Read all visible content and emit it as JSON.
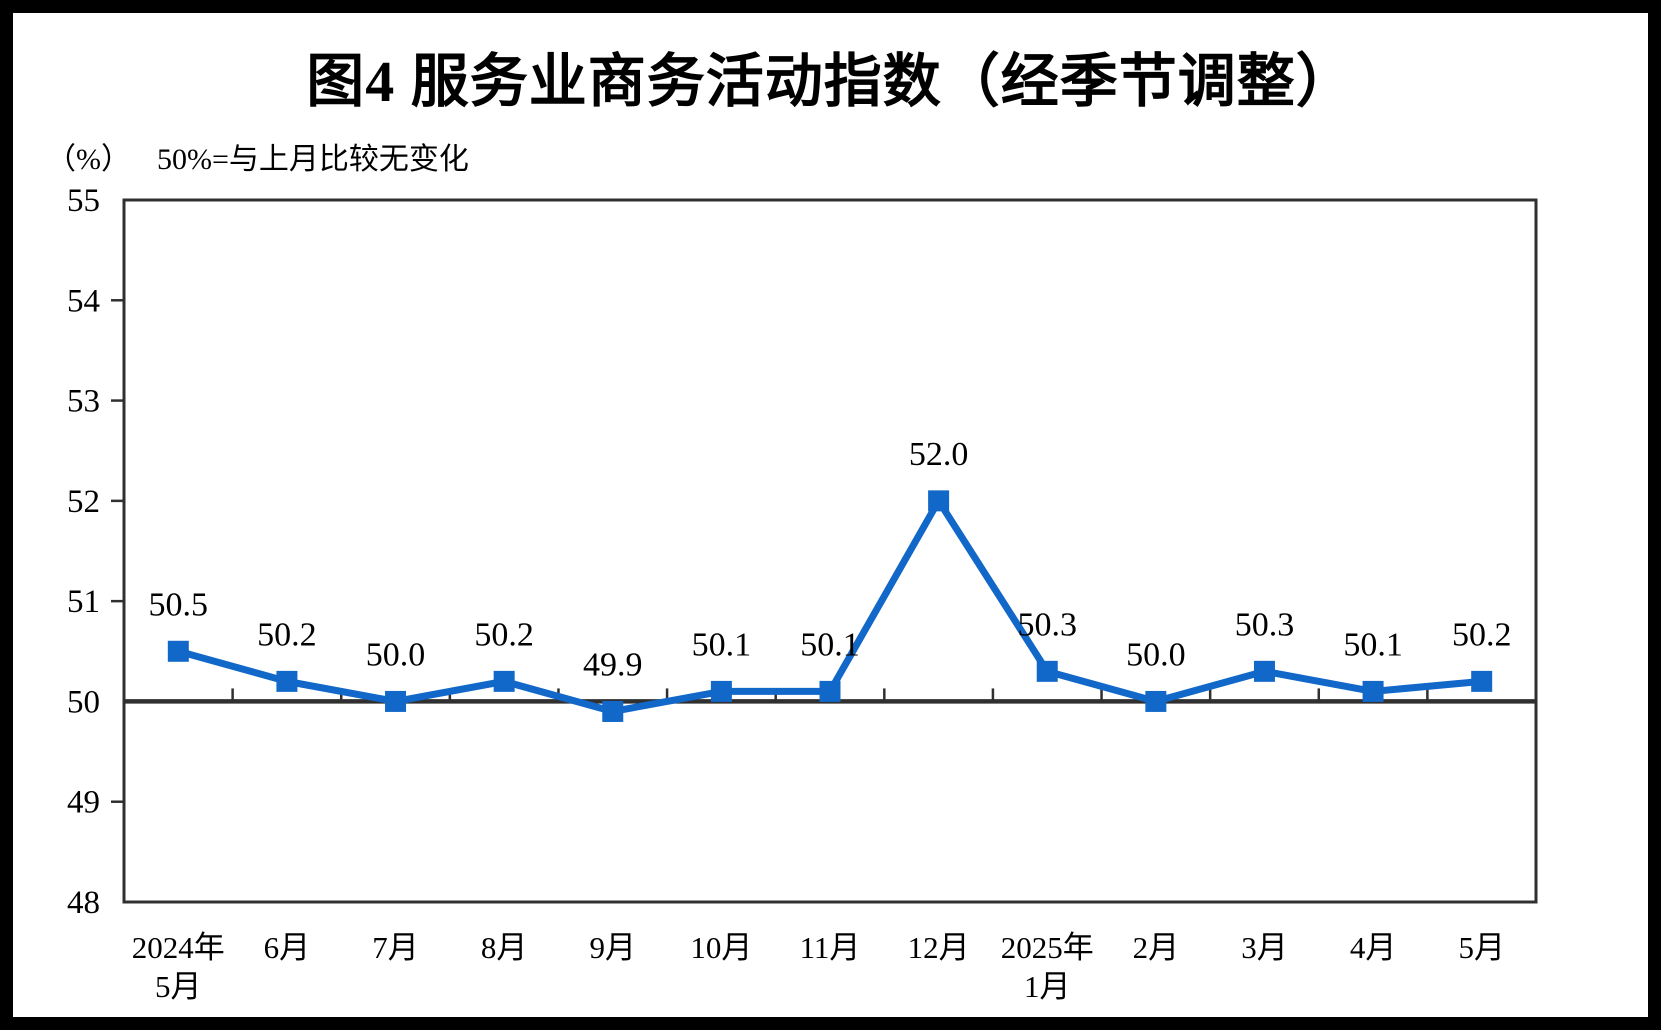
{
  "colors": {
    "line": "#1168C9",
    "axis": "#303030",
    "text": "#000000",
    "frame": "#000000",
    "background": "#ffffff"
  },
  "chart_data": {
    "type": "line",
    "title": "图4 服务业商务活动指数（经季节调整）",
    "unit_label": "（%）",
    "subtitle": "50%=与上月比较无变化",
    "categories": [
      [
        "2024年",
        "5月"
      ],
      [
        "6月"
      ],
      [
        "7月"
      ],
      [
        "8月"
      ],
      [
        "9月"
      ],
      [
        "10月"
      ],
      [
        "11月"
      ],
      [
        "12月"
      ],
      [
        "2025年",
        "1月"
      ],
      [
        "2月"
      ],
      [
        "3月"
      ],
      [
        "4月"
      ],
      [
        "5月"
      ]
    ],
    "values": [
      50.5,
      50.2,
      50.0,
      50.2,
      49.9,
      50.1,
      50.1,
      52.0,
      50.3,
      50.0,
      50.3,
      50.1,
      50.2
    ],
    "series_name": "服务业商务活动指数",
    "ylim": [
      48,
      55
    ],
    "ytick_step": 1,
    "baseline_value": 50,
    "marker": "square",
    "data_labels": true,
    "legend": "none",
    "grid": "off"
  }
}
